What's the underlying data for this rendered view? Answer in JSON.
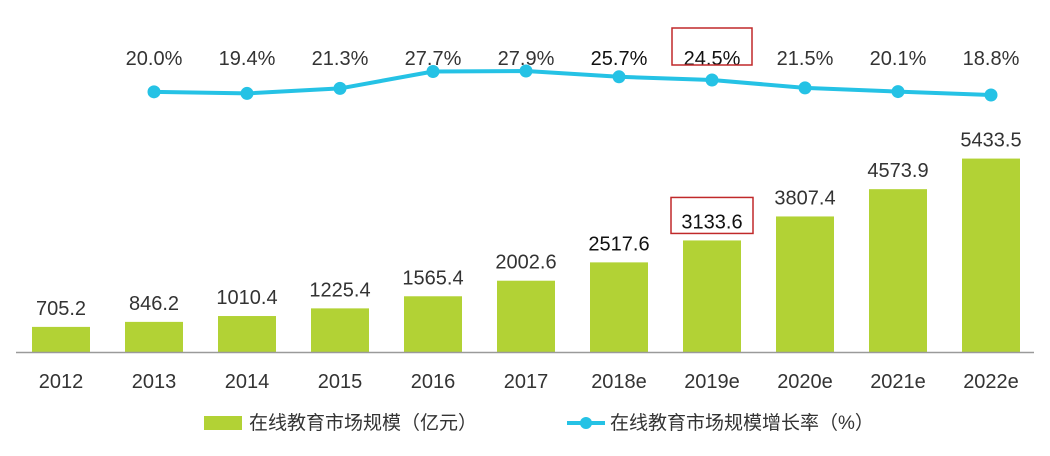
{
  "chart_data": {
    "type": "bar",
    "categories": [
      "2012",
      "2013",
      "2014",
      "2015",
      "2016",
      "2017",
      "2018e",
      "2019e",
      "2020e",
      "2021e",
      "2022e"
    ],
    "series": [
      {
        "name": "在线教育市场规模（亿元）",
        "type": "bar",
        "values": [
          705.2,
          846.2,
          1010.4,
          1225.4,
          1565.4,
          2002.6,
          2517.6,
          3133.6,
          3807.4,
          4573.9,
          5433.5
        ],
        "labels": [
          "705.2",
          "846.2",
          "1010.4",
          "1225.4",
          "1565.4",
          "2002.6",
          "2517.6",
          "3133.6",
          "3807.4",
          "4573.9",
          "5433.5"
        ]
      },
      {
        "name": "在线教育市场规模增长率（%）",
        "type": "line",
        "values": [
          null,
          20.0,
          19.4,
          21.3,
          27.7,
          27.9,
          25.7,
          24.5,
          21.5,
          20.1,
          18.8
        ],
        "labels": [
          "",
          "20.0%",
          "19.4%",
          "21.3%",
          "27.7%",
          "27.9%",
          "25.7%",
          "24.5%",
          "21.5%",
          "20.1%",
          "18.8%"
        ]
      }
    ],
    "highlighted_category": "2019e",
    "colors": {
      "bar": "#b2d235",
      "line": "#25c2e5",
      "highlight": "#c0292a",
      "axis": "#9a9a9a"
    },
    "grid": false,
    "legend_position": "bottom"
  }
}
